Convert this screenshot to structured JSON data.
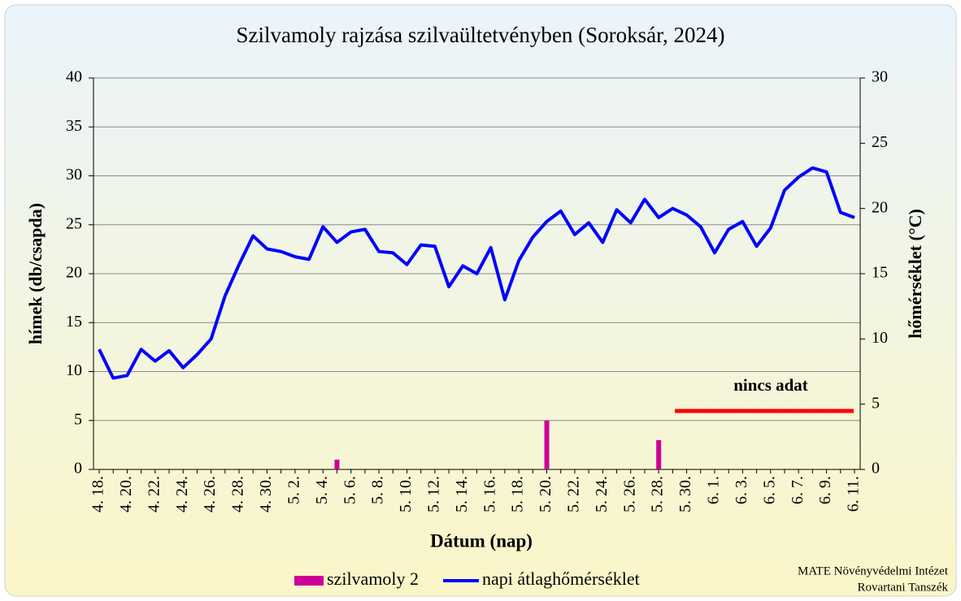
{
  "chart_data": {
    "type": "bar_line",
    "title": "Szilvamoly rajzása szilvaültetvényben (Soroksár, 2024)",
    "x_label": "Dátum (nap)",
    "y_label": "hímek (db/csapda)",
    "y2_label": "hőmérséklet (°C)",
    "annotation": "nincs adat",
    "credit": [
      "MATE Növényvédelmi Intézet",
      "Rovartani Tanszék"
    ],
    "categories": [
      "4. 18.",
      null,
      "4. 20.",
      null,
      "4. 22.",
      null,
      "4. 24.",
      null,
      "4. 26.",
      null,
      "4. 28.",
      null,
      "4. 30.",
      null,
      "5. 2.",
      null,
      "5. 4.",
      null,
      "5. 6.",
      null,
      "5. 8.",
      null,
      "5. 10.",
      null,
      "5. 12.",
      null,
      "5. 14.",
      null,
      "5. 16.",
      null,
      "5. 18.",
      null,
      "5. 20.",
      null,
      "5. 22.",
      null,
      "5. 24.",
      null,
      "5. 26.",
      null,
      "5. 28.",
      null,
      "5. 30.",
      null,
      "6. 1.",
      null,
      "6. 3.",
      null,
      "6. 5.",
      null,
      "6. 7.",
      null,
      "6. 9.",
      null,
      "6. 11."
    ],
    "series": [
      {
        "name": "szilvamoly 2",
        "color": "#cc0099",
        "type": "bar",
        "axis": "y",
        "values": [
          0,
          0,
          0,
          0,
          0,
          0,
          0,
          0,
          0,
          0,
          0,
          0,
          0,
          0,
          0,
          0,
          0,
          1,
          0,
          0,
          0,
          0,
          0,
          0,
          0,
          0,
          0,
          0,
          0,
          0,
          0,
          0,
          5,
          0,
          0,
          0,
          0,
          0,
          0,
          0,
          3,
          null,
          null,
          null,
          null,
          null,
          null,
          null,
          null,
          null,
          null,
          null,
          null,
          null,
          null
        ]
      },
      {
        "name": "napi átlaghőmérséklet",
        "color": "#0000ff",
        "type": "line",
        "axis": "y2",
        "values": [
          9.2,
          7.0,
          7.2,
          9.2,
          8.3,
          9.1,
          7.8,
          8.8,
          10.0,
          13.3,
          15.7,
          17.9,
          16.9,
          16.7,
          16.3,
          16.1,
          18.6,
          17.4,
          18.2,
          18.4,
          16.7,
          16.6,
          15.7,
          17.2,
          17.1,
          14.0,
          15.6,
          15.0,
          17.0,
          13.0,
          16.0,
          17.8,
          19.0,
          19.8,
          18.0,
          18.9,
          17.4,
          19.9,
          18.9,
          20.7,
          19.3,
          20.0,
          19.5,
          18.6,
          16.6,
          18.4,
          19.0,
          17.1,
          18.5,
          21.4,
          22.4,
          23.1,
          22.8,
          19.7,
          19.3
        ]
      }
    ],
    "ylim": [
      0,
      40
    ],
    "yticks": [
      0,
      5,
      10,
      15,
      20,
      25,
      30,
      35,
      40
    ],
    "y2lim": [
      0,
      30
    ],
    "y2ticks": [
      0,
      5,
      10,
      15,
      20,
      25,
      30
    ],
    "grid": true
  }
}
